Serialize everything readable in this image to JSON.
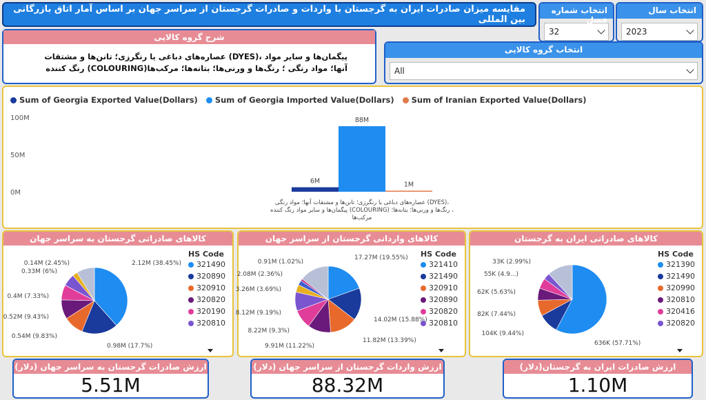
{
  "title": "مقایسه میزان صادرات ایران به گرجستان با واردات و صادرات گرجستان از سراسر جهان بر اساس آمار اتاق بازرگانی بین المللی",
  "slicers": {
    "season": {
      "label": "انتخاب شماره فصل",
      "value": "32"
    },
    "year": {
      "label": "انتخاب سال",
      "value": "2023"
    },
    "group": {
      "label": "انتخاب گروه کالایی",
      "value": "All"
    }
  },
  "description": {
    "header": "شرح گروه کالایی",
    "text": "پیگمان‌ها و سایر مواد ،(DYES) عصاره‌های دباغی یا رنگرزی؛ تانن‌ها و مشتقات آنها؛ مواد رنگی ؛ رنگ‌ها و ورنی‌ها؛ بتانه‌ها؛ مرکب‌ها(COLOURING) رنگ کننده"
  },
  "chart_data": [
    {
      "type": "bar",
      "series": [
        {
          "name": "Sum of Georgia Exported Value(Dollars)",
          "values": [
            6
          ],
          "label": "6M"
        },
        {
          "name": "Sum of Georgia Imported Value(Dollars)",
          "values": [
            88
          ],
          "label": "88M"
        },
        {
          "name": "Sum of Iranian Exported Value(Dollars)",
          "values": [
            1
          ],
          "label": "1M"
        }
      ],
      "colors": [
        "#1a3a9c",
        "#1e8cf0",
        "#e07a4a"
      ],
      "yticks": [
        "100M",
        "50M",
        "0M"
      ],
      "ylim": [
        0,
        100
      ],
      "category_label": [
        "،(DYES) عصاره‌های دباغی یا رنگرزی؛ تانن‌ها و مشتقات آنها؛ مواد رنگی",
        "، رنگ‌ها و ورنی‌ها؛ بتانه‌ها؛ (COLOURING) پیگمان‌ها و سایر مواد رنگ کننده",
        "مرکب‌ها"
      ]
    },
    {
      "type": "pie",
      "title": "کالاهای صادراتی گرجستان به سراسر جهان",
      "legend_title": "HS Code",
      "codes": [
        "321490",
        "320890",
        "320910",
        "320820",
        "320190",
        "320810"
      ],
      "values": [
        38.45,
        17.7,
        9.83,
        9.43,
        7.33,
        6,
        2.45,
        8.81
      ],
      "labels": [
        "2.12M (38.45%)",
        "0.98M (17.7%)",
        "0.54M (9.83%)",
        "0.52M (9.43%)",
        "0.4M (7.33%)",
        "0.33M (6%)",
        "0.14M (2.45%)",
        ""
      ]
    },
    {
      "type": "pie",
      "title": "کالاهای وارداتی گرجستان از سراسر جهان",
      "legend_title": "HS Code",
      "codes": [
        "321410",
        "321490",
        "320910",
        "320890",
        "320820",
        "320810"
      ],
      "values": [
        19.55,
        15.88,
        13.39,
        11.22,
        9.3,
        9.19,
        3.69,
        2.36,
        1.02,
        14.4
      ],
      "labels": [
        "17.27M (19.55%)",
        "14.02M (15.88%)",
        "11.82M (13.39%)",
        "9.91M (11.22%)",
        "8.22M (9.3%)",
        "8.12M (9.19%)",
        "3.26M (3.69%)",
        "2.08M (2.36%)",
        "0.91M (1.02%)",
        ""
      ]
    },
    {
      "type": "pie",
      "title": "کالاهای صادراتی ایران به گرجستان",
      "legend_title": "HS Code",
      "codes": [
        "321390",
        "321490",
        "320990",
        "320810",
        "320416",
        "320820"
      ],
      "values": [
        57.71,
        9.44,
        7.44,
        5.63,
        4.9,
        2.99,
        11.89
      ],
      "labels": [
        "636K (57.71%)",
        "104K (9.44%)",
        "82K (7.44%)",
        "62K (5.63%)",
        "55K (4.9...)",
        "33K (2.99%)",
        ""
      ]
    }
  ],
  "legend_colors": [
    "#1e8cf0",
    "#1a3a9c",
    "#e8692c",
    "#6a1a7a",
    "#e03d9a",
    "#7a55d0"
  ],
  "kpis": [
    {
      "label": "ارزش صادرات گرجستان به سراسر جهان (دلار)",
      "value": "5.51M"
    },
    {
      "label": "ارزش واردات گرجستان از سراسر جهان (دلار)",
      "value": "88.32M"
    },
    {
      "label": "ارزش صادرات ایران به گرجستان(دلار)",
      "value": "1.10M"
    }
  ]
}
